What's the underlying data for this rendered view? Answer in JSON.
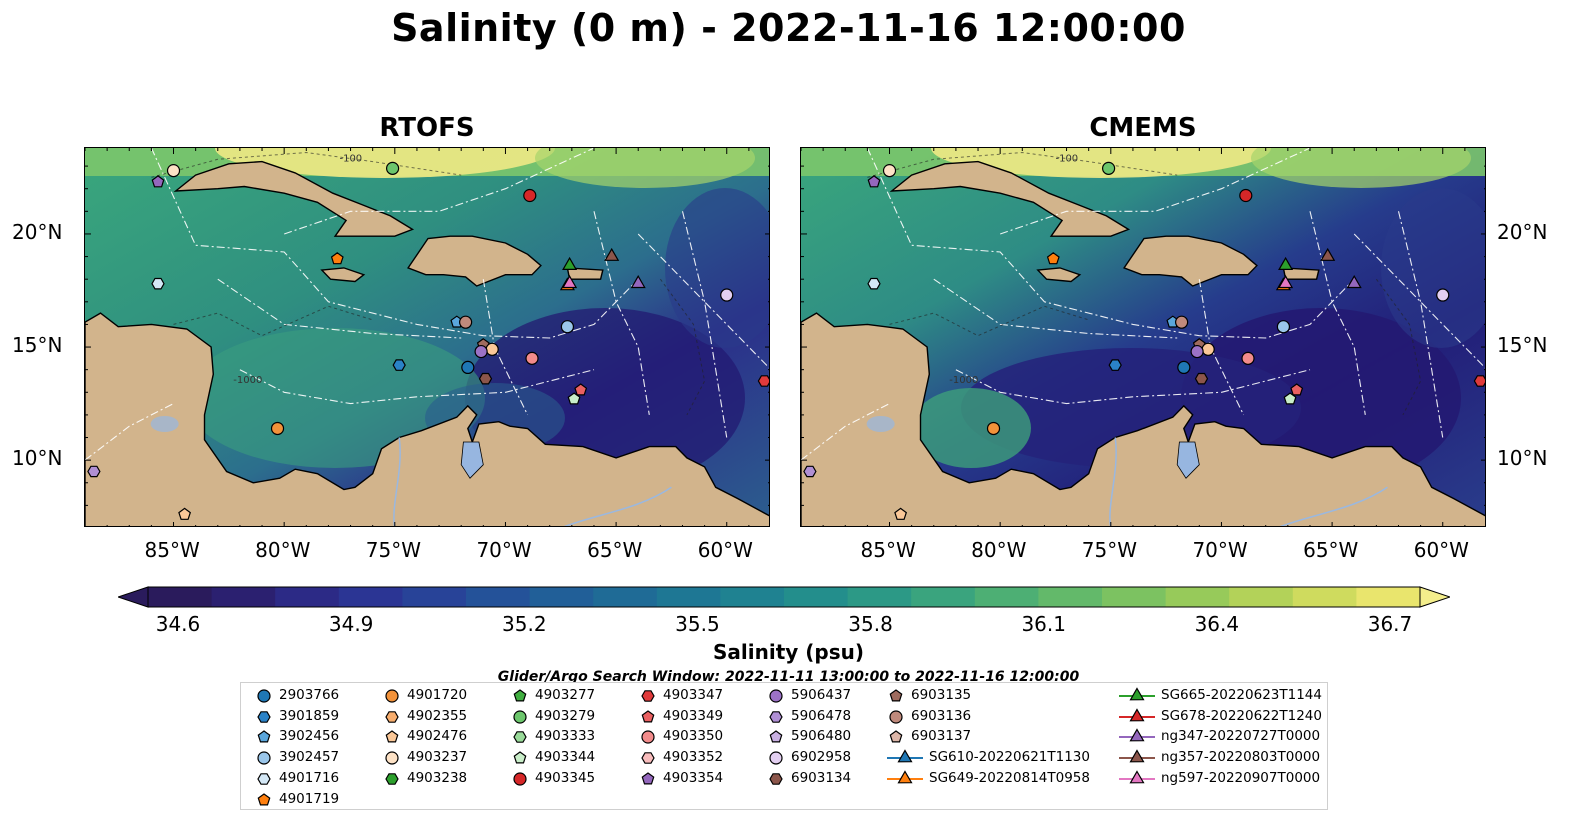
{
  "title": "Salinity (0 m) - 2022-11-16 12:00:00",
  "panels": [
    {
      "title": "RTOFS"
    },
    {
      "title": "CMEMS"
    }
  ],
  "lon_ticks": [
    "85°W",
    "80°W",
    "75°W",
    "70°W",
    "65°W",
    "60°W"
  ],
  "lat_ticks": [
    "20°N",
    "15°N",
    "10°N"
  ],
  "map_extent": {
    "lon": [
      -89,
      -58
    ],
    "lat": [
      7,
      23.8
    ]
  },
  "contour_labels": [
    "-100",
    "-1000"
  ],
  "colorbar": {
    "label": "Salinity (psu)",
    "ticks": [
      "34.6",
      "34.9",
      "35.2",
      "35.5",
      "35.8",
      "36.1",
      "36.4",
      "36.7"
    ],
    "range": [
      34.6,
      36.7
    ],
    "colormap": "haline",
    "extend": "both"
  },
  "legend": {
    "title": "Glider/Argo Search Window: 2022-11-11 13:00:00 to 2022-11-16 12:00:00",
    "columns": [
      [
        {
          "label": "2903766",
          "marker": "circle",
          "color": "#1f77b4"
        },
        {
          "label": "3901859",
          "marker": "hexagon",
          "color": "#2a82c7"
        },
        {
          "label": "3902456",
          "marker": "pentagon",
          "color": "#5aa6dc"
        },
        {
          "label": "3902457",
          "marker": "circle",
          "color": "#9ac6ea"
        },
        {
          "label": "4901716",
          "marker": "hexagon",
          "color": "#d4e8f6"
        },
        {
          "label": "4901719",
          "marker": "pentagon",
          "color": "#ff7f0e"
        }
      ],
      [
        {
          "label": "4901720",
          "marker": "circle",
          "color": "#f2923a"
        },
        {
          "label": "4902355",
          "marker": "hexagon",
          "color": "#f7ad6d"
        },
        {
          "label": "4902476",
          "marker": "pentagon",
          "color": "#fbc898"
        },
        {
          "label": "4903237",
          "marker": "circle",
          "color": "#fde2c6"
        },
        {
          "label": "4903238",
          "marker": "hexagon",
          "color": "#2ca02c"
        }
      ],
      [
        {
          "label": "4903277",
          "marker": "pentagon",
          "color": "#40ae40"
        },
        {
          "label": "4903279",
          "marker": "circle",
          "color": "#6cc66c"
        },
        {
          "label": "4903333",
          "marker": "hexagon",
          "color": "#99da99"
        },
        {
          "label": "4903344",
          "marker": "pentagon",
          "color": "#c9eec9"
        },
        {
          "label": "4903345",
          "marker": "circle",
          "color": "#d62728"
        }
      ],
      [
        {
          "label": "4903347",
          "marker": "hexagon",
          "color": "#e03a3b"
        },
        {
          "label": "4903349",
          "marker": "pentagon",
          "color": "#ea6061"
        },
        {
          "label": "4903350",
          "marker": "circle",
          "color": "#f28b8b"
        },
        {
          "label": "4903352",
          "marker": "hexagon",
          "color": "#f8bcbc"
        },
        {
          "label": "4903354",
          "marker": "pentagon",
          "color": "#9467bd"
        }
      ],
      [
        {
          "label": "5906437",
          "marker": "circle",
          "color": "#9c72c6"
        },
        {
          "label": "5906478",
          "marker": "hexagon",
          "color": "#b08fd4"
        },
        {
          "label": "5906480",
          "marker": "pentagon",
          "color": "#c9b0e2"
        },
        {
          "label": "6902958",
          "marker": "circle",
          "color": "#e3cff1"
        },
        {
          "label": "6903134",
          "marker": "hexagon",
          "color": "#8c564b"
        }
      ],
      [
        {
          "label": "6903135",
          "marker": "pentagon",
          "color": "#9f6b5e"
        },
        {
          "label": "6903136",
          "marker": "circle",
          "color": "#c08a7c"
        },
        {
          "label": "6903137",
          "marker": "pentagon",
          "color": "#ddb6a8"
        },
        {
          "label": "SG610-20220621T1130",
          "marker": "triangle",
          "color": "#1f77b4"
        },
        {
          "label": "SG649-20220814T0958",
          "marker": "triangle",
          "color": "#ff7f0e"
        }
      ],
      [
        {
          "label": "SG665-20220623T1144",
          "marker": "triangle",
          "color": "#2ca02c"
        },
        {
          "label": "SG678-20220622T1240",
          "marker": "triangle",
          "color": "#d62728"
        },
        {
          "label": "ng347-20220727T0000",
          "marker": "triangle",
          "color": "#9467bd"
        },
        {
          "label": "ng357-20220803T0000",
          "marker": "triangle",
          "color": "#8c564b"
        },
        {
          "label": "ng597-20220907T0000",
          "marker": "triangle",
          "color": "#e377c2"
        }
      ]
    ]
  },
  "stations": [
    {
      "lon": -85.7,
      "lat": 22.3,
      "marker": "pentagon",
      "color": "#9467bd"
    },
    {
      "lon": -85.0,
      "lat": 22.8,
      "marker": "circle",
      "color": "#fde2c6"
    },
    {
      "lon": -75.1,
      "lat": 22.9,
      "marker": "circle",
      "color": "#6cc66c"
    },
    {
      "lon": -68.9,
      "lat": 21.7,
      "marker": "circle",
      "color": "#d62728"
    },
    {
      "lon": -77.6,
      "lat": 18.9,
      "marker": "pentagon",
      "color": "#ff7f0e"
    },
    {
      "lon": -85.7,
      "lat": 17.8,
      "marker": "hexagon",
      "color": "#d4e8f6"
    },
    {
      "lon": -72.2,
      "lat": 16.1,
      "marker": "pentagon",
      "color": "#5aa6dc"
    },
    {
      "lon": -71.8,
      "lat": 16.1,
      "marker": "circle",
      "color": "#c08a7c"
    },
    {
      "lon": -67.2,
      "lat": 15.9,
      "marker": "circle",
      "color": "#9ac6ea"
    },
    {
      "lon": -60.0,
      "lat": 17.3,
      "marker": "circle",
      "color": "#e3cff1"
    },
    {
      "lon": -71.0,
      "lat": 15.1,
      "marker": "pentagon",
      "color": "#9f6b5e"
    },
    {
      "lon": -70.6,
      "lat": 14.9,
      "marker": "circle",
      "color": "#fbc898"
    },
    {
      "lon": -71.1,
      "lat": 14.8,
      "marker": "circle",
      "color": "#9c72c6"
    },
    {
      "lon": -71.7,
      "lat": 14.1,
      "marker": "circle",
      "color": "#1f77b4"
    },
    {
      "lon": -70.9,
      "lat": 13.6,
      "marker": "hexagon",
      "color": "#8c564b"
    },
    {
      "lon": -68.8,
      "lat": 14.5,
      "marker": "circle",
      "color": "#f28b8b"
    },
    {
      "lon": -74.8,
      "lat": 14.2,
      "marker": "hexagon",
      "color": "#2a82c7"
    },
    {
      "lon": -66.6,
      "lat": 13.1,
      "marker": "pentagon",
      "color": "#ea6061"
    },
    {
      "lon": -66.9,
      "lat": 12.7,
      "marker": "pentagon",
      "color": "#c9eec9"
    },
    {
      "lon": -58.3,
      "lat": 13.5,
      "marker": "hexagon",
      "color": "#e03a3b"
    },
    {
      "lon": -80.3,
      "lat": 11.4,
      "marker": "circle",
      "color": "#f2923a"
    },
    {
      "lon": -88.6,
      "lat": 9.5,
      "marker": "hexagon",
      "color": "#b08fd4"
    },
    {
      "lon": -84.5,
      "lat": 7.6,
      "marker": "pentagon",
      "color": "#fbc898"
    },
    {
      "lon": -67.1,
      "lat": 18.6,
      "marker": "triangle",
      "color": "#2ca02c"
    },
    {
      "lon": -67.2,
      "lat": 17.7,
      "marker": "triangle",
      "color": "#ff7f0e"
    },
    {
      "lon": -67.1,
      "lat": 17.8,
      "marker": "triangle",
      "color": "#e377c2"
    },
    {
      "lon": -65.2,
      "lat": 19.0,
      "marker": "triangle",
      "color": "#8c564b"
    },
    {
      "lon": -64.0,
      "lat": 17.8,
      "marker": "triangle",
      "color": "#9467bd"
    }
  ]
}
